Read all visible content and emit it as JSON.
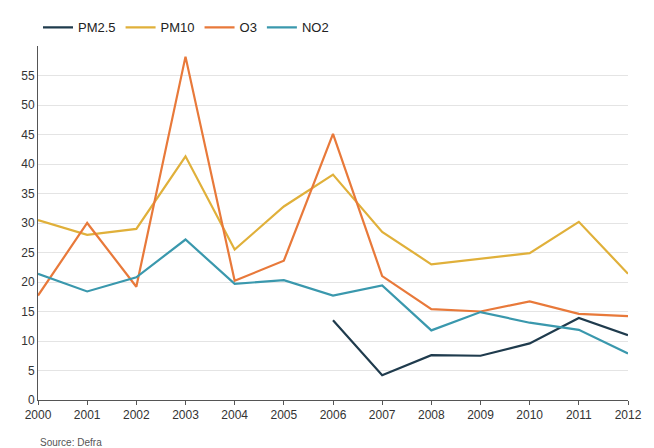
{
  "chart_data": {
    "type": "line",
    "source": "Source: Defra",
    "x": [
      2000,
      2001,
      2002,
      2003,
      2004,
      2005,
      2006,
      2007,
      2008,
      2009,
      2010,
      2011,
      2012
    ],
    "series": [
      {
        "name": "PM2.5",
        "color": "#1f3b4d",
        "values": [
          null,
          null,
          null,
          null,
          null,
          null,
          13.5,
          4.2,
          7.6,
          7.5,
          9.6,
          13.9,
          11.0
        ]
      },
      {
        "name": "PM10",
        "color": "#e0b03a",
        "values": [
          30.5,
          28.0,
          29.0,
          41.3,
          25.5,
          32.8,
          38.2,
          28.5,
          23.0,
          24.0,
          24.9,
          30.2,
          21.4
        ]
      },
      {
        "name": "O3",
        "color": "#e8793a",
        "values": [
          17.7,
          30.0,
          19.2,
          58.2,
          20.2,
          23.6,
          45.1,
          21.0,
          15.4,
          15.0,
          16.7,
          14.6,
          14.2
        ]
      },
      {
        "name": "NO2",
        "color": "#3a98ad",
        "values": [
          21.4,
          18.4,
          20.8,
          27.2,
          19.7,
          20.3,
          17.7,
          19.4,
          11.8,
          14.9,
          13.1,
          11.9,
          7.9
        ]
      }
    ],
    "xlim": [
      2000,
      2012
    ],
    "xticks": [
      2000,
      2001,
      2002,
      2003,
      2004,
      2005,
      2006,
      2007,
      2008,
      2009,
      2010,
      2011,
      2012
    ],
    "ylim": [
      0,
      60
    ],
    "yticks": [
      0,
      5,
      10,
      15,
      20,
      25,
      30,
      35,
      40,
      45,
      50,
      55
    ],
    "grid": true,
    "legend": "top left"
  }
}
